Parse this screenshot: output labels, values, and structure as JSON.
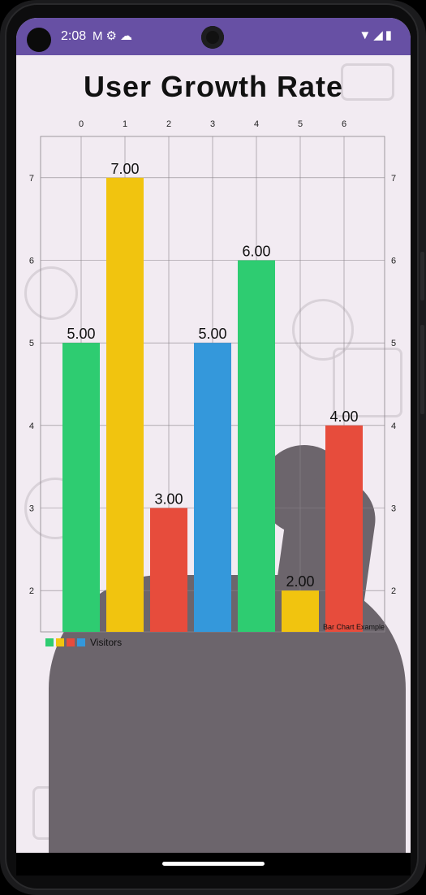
{
  "status_bar": {
    "time": "2:08",
    "left_icons": [
      "gmail-icon",
      "settings-icon",
      "cloud-icon"
    ],
    "right_icons": [
      "wifi-icon",
      "signal-icon",
      "battery-icon"
    ]
  },
  "page": {
    "title": "User Growth Rate"
  },
  "chart_data": {
    "type": "bar",
    "categories": [
      "0",
      "1",
      "2",
      "3",
      "4",
      "5",
      "6"
    ],
    "x_ticks_top": [
      "0",
      "1",
      "2",
      "3",
      "4",
      "5",
      "6"
    ],
    "y_ticks": [
      "2",
      "3",
      "4",
      "5",
      "6",
      "7"
    ],
    "series": [
      {
        "name": "Visitors",
        "values": [
          5.0,
          7.0,
          3.0,
          5.0,
          6.0,
          2.0,
          4.0
        ],
        "value_labels": [
          "5.00",
          "7.00",
          "3.00",
          "5.00",
          "6.00",
          "2.00",
          "4.00"
        ],
        "colors": [
          "#2ecc71",
          "#f1c40f",
          "#e74c3c",
          "#3498db",
          "#2ecc71",
          "#f1c40f",
          "#e74c3c"
        ]
      }
    ],
    "ylim": [
      1.5,
      7.5
    ],
    "grid": true,
    "legend": {
      "placement": "bottom-left",
      "label": "Visitors",
      "colors": [
        "#2ecc71",
        "#f1c40f",
        "#e74c3c",
        "#3498db"
      ]
    },
    "description": "Bar Chart Example",
    "xlabel": "",
    "ylabel": ""
  }
}
